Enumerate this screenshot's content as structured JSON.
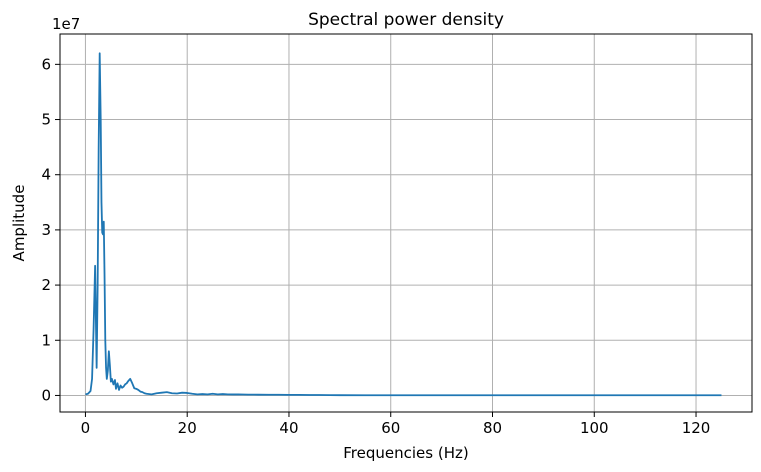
{
  "chart_data": {
    "type": "line",
    "title": "Spectral power density",
    "xlabel": "Frequencies (Hz)",
    "ylabel": "Amplitude",
    "y_offset_label": "1e7",
    "xlim": [
      -5,
      131
    ],
    "ylim": [
      -0.3,
      6.55
    ],
    "x_ticks": [
      0,
      20,
      40,
      60,
      80,
      100,
      120
    ],
    "y_ticks": [
      0,
      1,
      2,
      3,
      4,
      5,
      6
    ],
    "grid": true,
    "line_color": "#1f77b4",
    "series": [
      {
        "x": [
          0,
          0.5,
          1.0,
          1.3,
          1.6,
          1.9,
          2.05,
          2.2,
          2.4,
          2.6,
          2.8,
          3.0,
          3.15,
          3.3,
          3.45,
          3.6,
          3.75,
          3.9,
          4.05,
          4.2,
          4.4,
          4.6,
          4.8,
          5.0,
          5.2,
          5.5,
          5.8,
          6.0,
          6.3,
          6.6,
          6.9,
          7.2,
          7.5,
          7.8,
          8.1,
          8.4,
          8.8,
          9.2,
          9.6,
          10.0,
          10.4,
          10.8,
          11.2,
          11.6,
          12.0,
          13.0,
          14.0,
          15.0,
          16.0,
          17.0,
          18.0,
          19.0,
          20.0,
          21.0,
          22.0,
          23.0,
          24.0,
          25.0,
          26.0,
          27.0,
          28.0,
          29.0,
          30.0,
          32.0,
          34.0,
          36.0,
          38.0,
          40.0,
          42.0,
          44.0,
          46.0,
          48.0,
          50.0,
          55.0,
          60.0,
          70.0,
          80.0,
          90.0,
          100.0,
          110.0,
          120.0,
          125.0
        ],
        "values": [
          0.02,
          0.03,
          0.08,
          0.3,
          1.2,
          2.35,
          1.4,
          0.5,
          2.0,
          4.5,
          6.2,
          5.0,
          3.5,
          2.95,
          2.92,
          3.15,
          2.2,
          1.0,
          0.5,
          0.3,
          0.45,
          0.8,
          0.55,
          0.25,
          0.3,
          0.2,
          0.28,
          0.12,
          0.22,
          0.1,
          0.18,
          0.14,
          0.16,
          0.2,
          0.22,
          0.26,
          0.3,
          0.22,
          0.13,
          0.12,
          0.1,
          0.07,
          0.06,
          0.04,
          0.03,
          0.02,
          0.04,
          0.05,
          0.06,
          0.04,
          0.035,
          0.05,
          0.045,
          0.03,
          0.02,
          0.025,
          0.02,
          0.03,
          0.02,
          0.025,
          0.02,
          0.018,
          0.02,
          0.015,
          0.014,
          0.012,
          0.012,
          0.01,
          0.01,
          0.008,
          0.008,
          0.006,
          0.005,
          0.004,
          0.003,
          0.003,
          0.003,
          0.003,
          0.003,
          0.003,
          0.003,
          0.003
        ]
      }
    ]
  }
}
